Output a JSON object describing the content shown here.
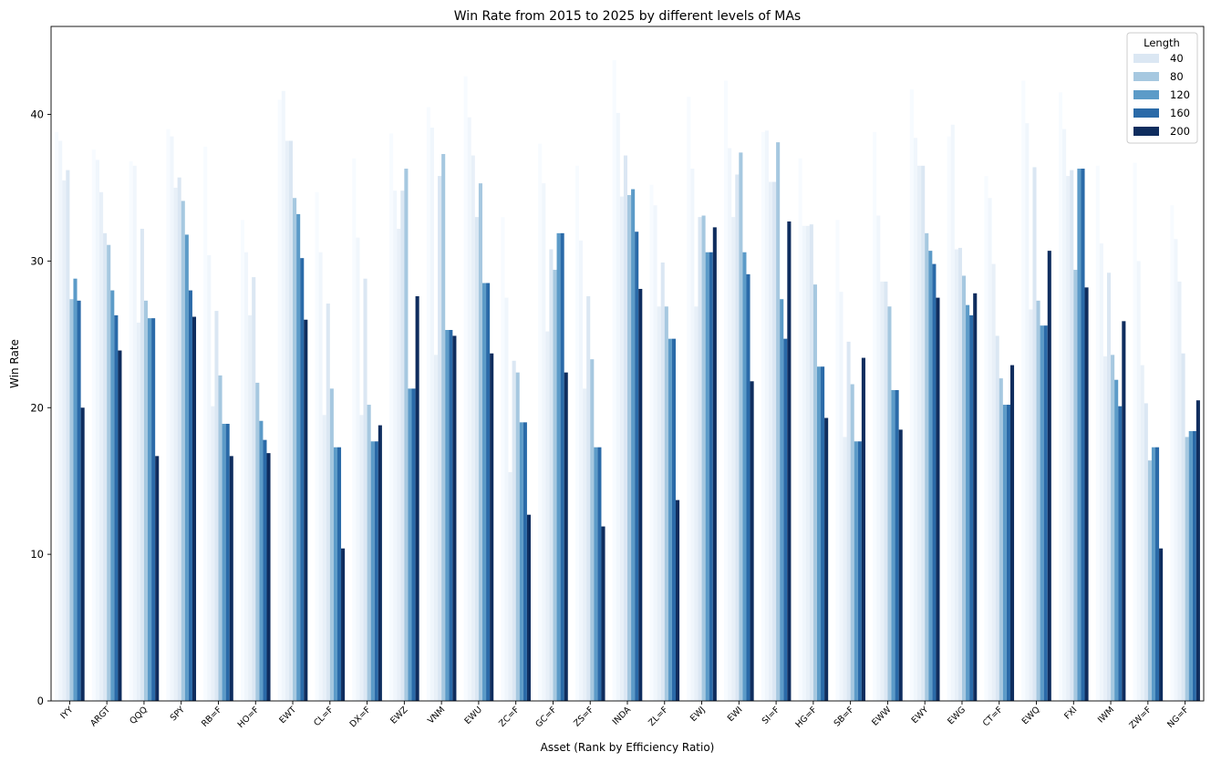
{
  "chart_data": {
    "type": "bar",
    "title": "Win Rate from 2015 to 2025 by different levels of MAs",
    "xlabel": "Asset (Rank by Efficiency Ratio)",
    "ylabel": "Win Rate",
    "ylim": [
      0,
      46
    ],
    "yticks": [
      0,
      10,
      20,
      30,
      40
    ],
    "grid": false,
    "legend": {
      "title": "Length",
      "placement": "top-right"
    },
    "categories": [
      "IYY",
      "ARGT",
      "QQQ",
      "SPY",
      "RB=F",
      "HO=F",
      "EWT",
      "CL=F",
      "DX=F",
      "EWZ",
      "VNM",
      "EWU",
      "ZC=F",
      "GC=F",
      "ZS=F",
      "INDA",
      "ZL=F",
      "EWJ",
      "EWI",
      "SI=F",
      "HG=F",
      "SB=F",
      "EWW",
      "EWY",
      "EWG",
      "CT=F",
      "EWQ",
      "FXI",
      "IWM",
      "ZW=F",
      "NG=F"
    ],
    "shown_series": [
      {
        "name": "40",
        "color": "#dbe7f3",
        "values": [
          36.2,
          31.9,
          32.2,
          35.7,
          26.6,
          28.9,
          38.2,
          27.1,
          28.8,
          34.8,
          35.8,
          33.0,
          23.2,
          30.8,
          27.6,
          37.2,
          29.9,
          33.0,
          35.9,
          35.4,
          32.5,
          24.5,
          28.6,
          36.5,
          30.9,
          24.9,
          36.4,
          36.2,
          29.2,
          20.3,
          23.7
        ]
      },
      {
        "name": "80",
        "color": "#a6c8e0",
        "values": [
          27.4,
          31.1,
          27.3,
          34.1,
          22.2,
          21.7,
          34.3,
          21.3,
          20.2,
          36.3,
          37.3,
          35.3,
          22.4,
          29.4,
          23.3,
          34.5,
          26.9,
          33.1,
          37.4,
          38.1,
          28.4,
          21.6,
          26.9,
          31.9,
          29.0,
          22.0,
          27.3,
          29.4,
          23.6,
          16.4,
          18.0
        ]
      },
      {
        "name": "120",
        "color": "#5c9bc8",
        "values": [
          28.8,
          28.0,
          26.1,
          31.8,
          18.9,
          19.1,
          33.2,
          17.3,
          17.7,
          21.3,
          25.3,
          28.5,
          19.0,
          31.9,
          17.3,
          34.9,
          24.7,
          30.6,
          30.6,
          27.4,
          22.8,
          17.7,
          21.2,
          30.7,
          27.0,
          20.2,
          25.6,
          36.3,
          21.9,
          17.3,
          18.4
        ]
      },
      {
        "name": "160",
        "color": "#2a6aa8",
        "values": [
          27.3,
          26.3,
          26.1,
          28.0,
          18.9,
          17.8,
          30.2,
          17.3,
          17.7,
          21.3,
          25.3,
          28.5,
          19.0,
          31.9,
          17.3,
          32.0,
          24.7,
          30.6,
          29.1,
          24.7,
          22.8,
          17.7,
          21.2,
          29.8,
          26.3,
          20.2,
          25.6,
          36.3,
          20.1,
          17.3,
          18.4
        ]
      },
      {
        "name": "200",
        "color": "#0f2d5e",
        "values": [
          20.0,
          23.9,
          16.7,
          26.2,
          16.7,
          16.9,
          26.0,
          10.4,
          18.8,
          27.6,
          24.9,
          23.7,
          12.7,
          22.4,
          11.9,
          28.1,
          13.7,
          32.3,
          21.8,
          32.7,
          19.3,
          23.4,
          18.5,
          27.5,
          27.8,
          22.9,
          30.7,
          28.2,
          25.9,
          10.4,
          20.5
        ]
      }
    ],
    "faint_series": [
      {
        "color": "#f7fbff",
        "values": [
          38.8,
          37.6,
          36.8,
          39.0,
          37.8,
          32.8,
          41.0,
          34.7,
          37.0,
          38.7,
          40.5,
          42.6,
          33.0,
          38.0,
          36.5,
          43.7,
          35.2,
          41.2,
          42.3,
          38.8,
          37.0,
          32.8,
          38.8,
          41.7,
          38.5,
          35.8,
          42.3,
          41.5,
          36.5,
          36.7,
          33.8
        ]
      },
      {
        "color": "#f0f6fc",
        "values": [
          38.2,
          36.9,
          36.5,
          38.5,
          30.4,
          30.6,
          41.6,
          30.6,
          31.6,
          34.8,
          39.1,
          39.8,
          27.5,
          35.3,
          31.4,
          40.1,
          33.8,
          36.3,
          37.7,
          38.9,
          32.4,
          27.9,
          33.1,
          38.4,
          39.3,
          34.3,
          39.4,
          39.0,
          31.2,
          30.0,
          31.5
        ]
      },
      {
        "color": "#e8f0f8",
        "values": [
          35.5,
          34.7,
          25.8,
          35.0,
          20.1,
          26.3,
          38.2,
          19.5,
          19.5,
          32.2,
          23.6,
          37.2,
          15.6,
          25.2,
          21.3,
          34.4,
          26.9,
          26.9,
          33.0,
          35.4,
          32.4,
          18.0,
          28.6,
          36.5,
          30.8,
          29.8,
          26.7,
          35.8,
          23.5,
          22.9,
          28.6
        ]
      }
    ]
  }
}
